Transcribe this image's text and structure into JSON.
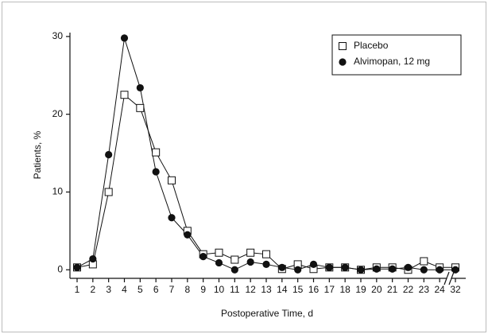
{
  "chart_data": {
    "type": "line",
    "xlabel": "Postoperative Time, d",
    "ylabel": "Patients, %",
    "categories": [
      "1",
      "2",
      "3",
      "4",
      "5",
      "6",
      "7",
      "8",
      "9",
      "10",
      "11",
      "12",
      "13",
      "14",
      "15",
      "16",
      "17",
      "18",
      "19",
      "20",
      "21",
      "22",
      "23",
      "24",
      "32"
    ],
    "series": [
      {
        "name": "Placebo",
        "color": "#111111",
        "marker": "square",
        "values": [
          0.3,
          0.7,
          10,
          22.5,
          20.8,
          15.1,
          11.5,
          5,
          2,
          2.2,
          1.3,
          2.2,
          2,
          0.1,
          0.7,
          0.1,
          0.3,
          0.3,
          0,
          0.3,
          0.3,
          0,
          1.1,
          0.3,
          0.3
        ]
      },
      {
        "name": "Alvimopan, 12 mg",
        "color": "#111111",
        "marker": "circle",
        "values": [
          0.3,
          1.4,
          14.8,
          29.8,
          23.4,
          12.6,
          6.7,
          4.5,
          1.7,
          0.9,
          0,
          1,
          0.7,
          0.3,
          0,
          0.7,
          0.3,
          0.3,
          0,
          0.1,
          0.1,
          0.3,
          0,
          0,
          0
        ]
      }
    ],
    "ylim": [
      -1.1,
      30.5
    ],
    "yticks": [
      0,
      10,
      20,
      30
    ],
    "legend": "upper right"
  }
}
